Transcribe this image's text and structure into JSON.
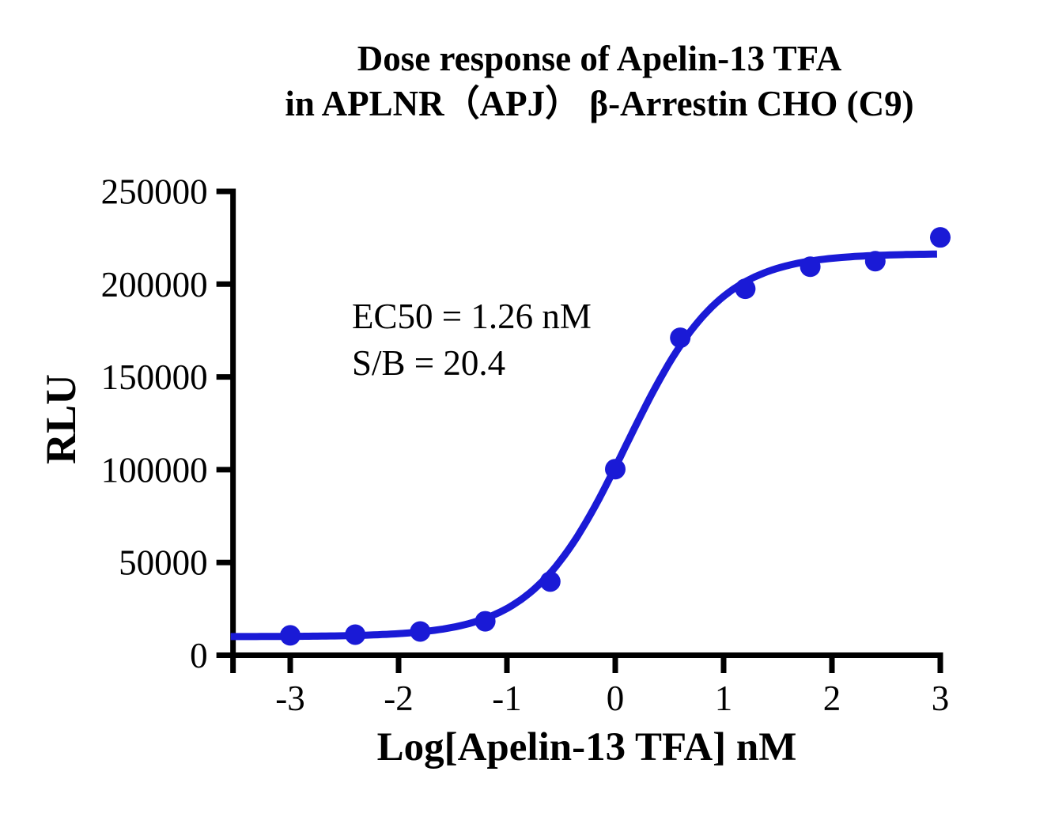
{
  "title": {
    "line1": "Dose response of Apelin-13 TFA",
    "line2": "in APLNR（APJ） β-Arrestin CHO (C9)"
  },
  "annotation": {
    "line1": "EC50 = 1.26 nM",
    "line2": "S/B = 20.4"
  },
  "chart_data": {
    "type": "scatter",
    "title": "Dose response of Apelin-13 TFA in APLNR（APJ） β-Arrestin CHO (C9)",
    "xlabel": "Log[Apelin-13 TFA] nM",
    "ylabel": "RLU",
    "xlim": [
      -3.55,
      3
    ],
    "ylim": [
      0,
      250000
    ],
    "x_ticks": [
      -3,
      -2,
      -1,
      0,
      1,
      2,
      3
    ],
    "y_ticks": [
      0,
      50000,
      100000,
      150000,
      200000,
      250000
    ],
    "grid": false,
    "legend": false,
    "series_color": "#1a1ad6",
    "axis_color": "#000000",
    "points": {
      "x": [
        -3,
        -2.4,
        -1.8,
        -1.2,
        -0.6,
        0,
        0.6,
        1.2,
        1.8,
        2.4,
        3
      ],
      "y": [
        10700,
        11100,
        12800,
        18300,
        39700,
        100300,
        171100,
        197500,
        209400,
        212400,
        225200
      ]
    },
    "fit_curve": {
      "model": "four-parameter-logistic",
      "bottom": 10000,
      "top": 216500,
      "log_ec50": 0.1004,
      "hill_slope": 1.0
    },
    "ec50_nM": 1.26,
    "signal_to_background": 20.4
  }
}
